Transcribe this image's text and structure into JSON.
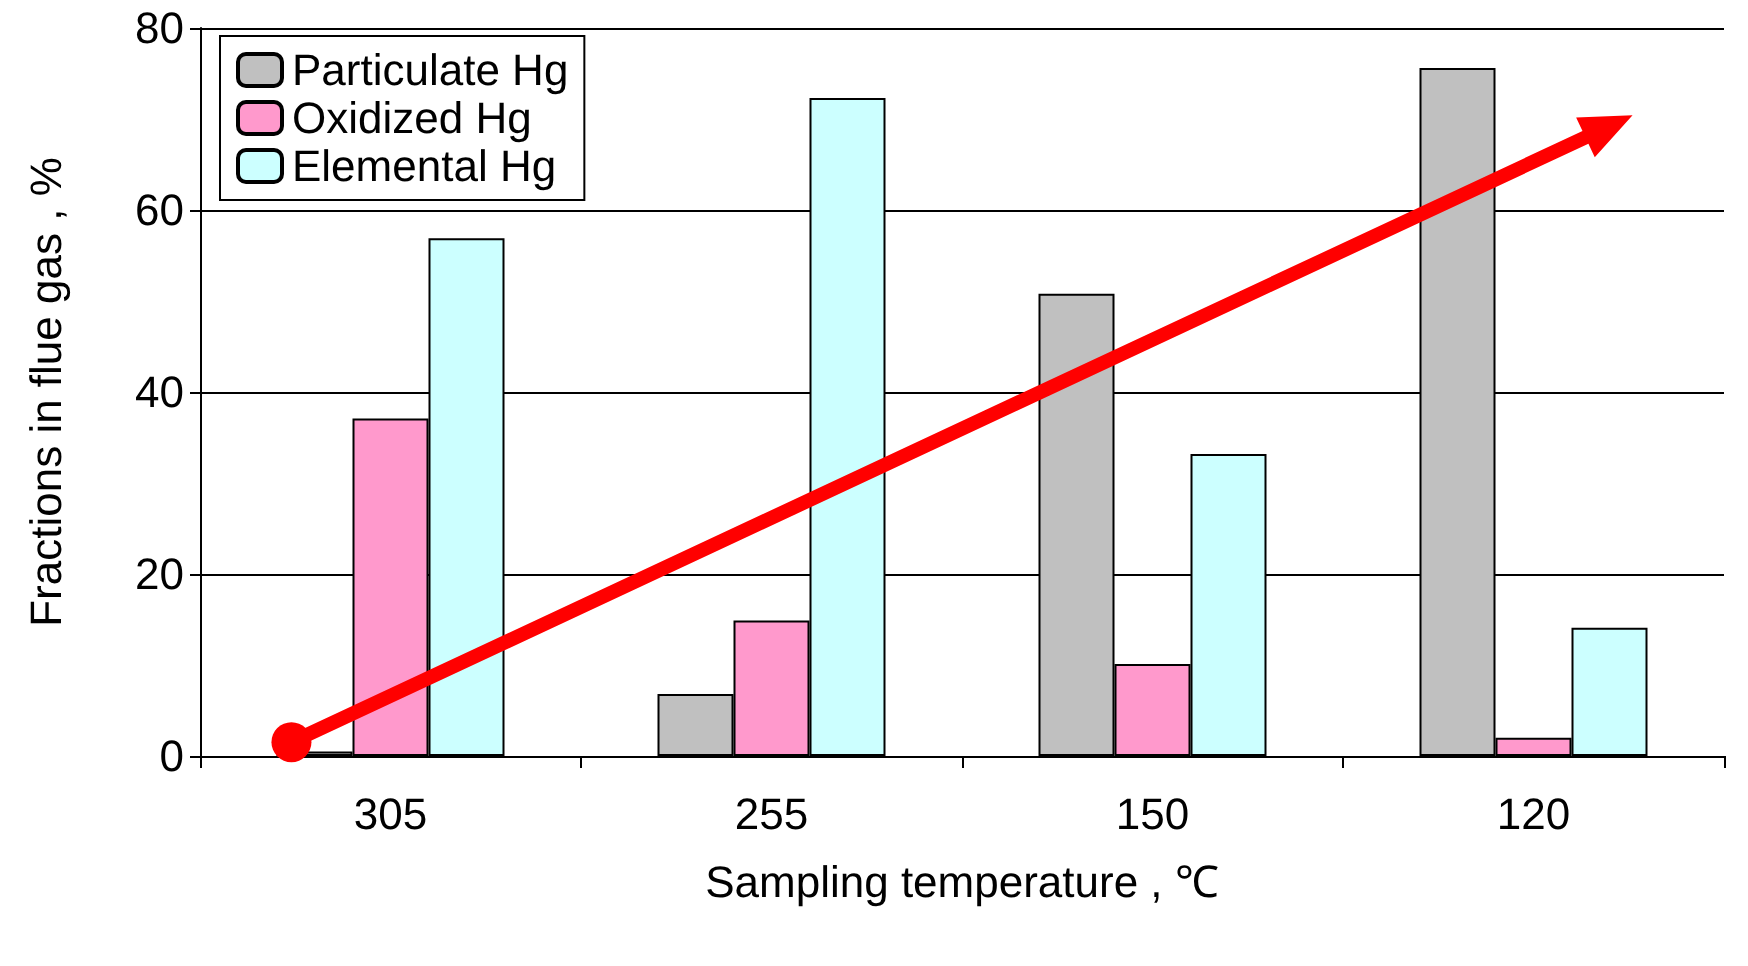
{
  "chart_data": {
    "type": "bar",
    "xlabel": "Sampling temperature , ℃",
    "ylabel": "Fractions in flue gas , %",
    "categories": [
      "305",
      "255",
      "150",
      "120"
    ],
    "series": [
      {
        "name": "Particulate Hg",
        "color": "#c0c0c0",
        "values": [
          0.5,
          6.8,
          50.8,
          75.6
        ]
      },
      {
        "name": "Oxidized Hg",
        "color": "#ff99cc",
        "values": [
          37.1,
          14.9,
          10.1,
          2.0
        ]
      },
      {
        "name": "Elemental Hg",
        "color": "#ccffff",
        "values": [
          56.9,
          72.3,
          33.2,
          14.1
        ]
      }
    ],
    "ylim": [
      0,
      80
    ],
    "yticks": [
      0,
      20,
      40,
      60,
      80
    ],
    "grid": "y",
    "legend": "top left"
  }
}
